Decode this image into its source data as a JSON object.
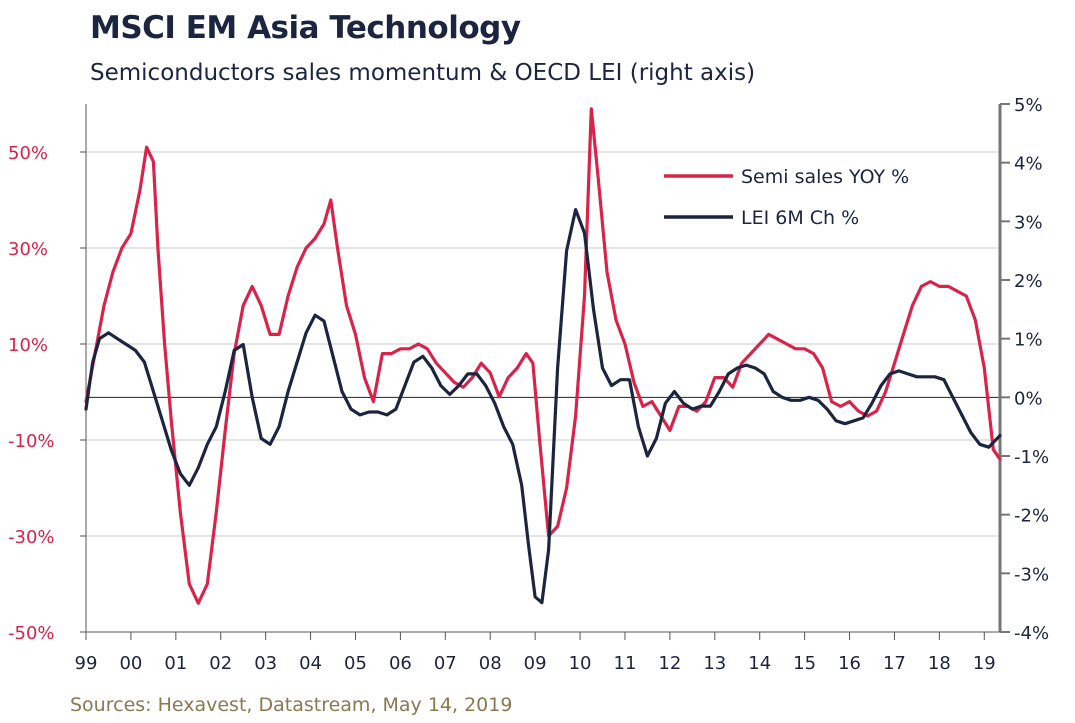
{
  "header": {
    "title": "MSCI EM Asia Technology",
    "subtitle": "Semiconductors sales momentum & OECD LEI (right axis)"
  },
  "footer": {
    "source": "Sources: Hexavest, Datastream, May 14, 2019"
  },
  "colors": {
    "semi": "#d8234a",
    "lei": "#1b2540",
    "grid": "#c8c8c8",
    "axis": "#555555",
    "source": "#8a7850"
  },
  "chart_data": {
    "type": "line",
    "title": "MSCI EM Asia Technology",
    "subtitle": "Semiconductors sales momentum & OECD LEI (right axis)",
    "x_categories": [
      "99",
      "00",
      "01",
      "02",
      "03",
      "04",
      "05",
      "06",
      "07",
      "08",
      "09",
      "10",
      "11",
      "12",
      "13",
      "14",
      "15",
      "16",
      "17",
      "18",
      "19"
    ],
    "xlim": [
      1999,
      2019.35
    ],
    "y_left": {
      "ylim": [
        -50,
        60
      ],
      "ticks": [
        50,
        30,
        10,
        -10,
        -30,
        -50
      ],
      "tick_labels": [
        "50%",
        "30%",
        "10%",
        "-10%",
        "-30%",
        "-50%"
      ]
    },
    "y_right": {
      "ylim": [
        -4,
        5
      ],
      "ticks": [
        5,
        4,
        3,
        2,
        1,
        0,
        -1,
        -2,
        -3,
        -4
      ],
      "tick_labels": [
        "5%",
        "4%",
        "3%",
        "2%",
        "1%",
        "0%",
        "-1%",
        "-2%",
        "-3%",
        "-4%"
      ]
    },
    "grid": true,
    "legend": "top-right",
    "series": [
      {
        "name": "Semi sales YOY %",
        "axis": "left",
        "x": [
          1999.0,
          1999.2,
          1999.4,
          1999.6,
          1999.8,
          2000.0,
          2000.2,
          2000.35,
          2000.5,
          2000.6,
          2000.75,
          2000.9,
          2001.1,
          2001.3,
          2001.5,
          2001.7,
          2001.9,
          2002.1,
          2002.3,
          2002.5,
          2002.7,
          2002.9,
          2003.1,
          2003.3,
          2003.5,
          2003.7,
          2003.9,
          2004.1,
          2004.3,
          2004.45,
          2004.6,
          2004.8,
          2005.0,
          2005.2,
          2005.4,
          2005.6,
          2005.8,
          2006.0,
          2006.2,
          2006.4,
          2006.6,
          2006.8,
          2007.0,
          2007.2,
          2007.4,
          2007.6,
          2007.8,
          2008.0,
          2008.2,
          2008.4,
          2008.6,
          2008.8,
          2008.95,
          2009.1,
          2009.3,
          2009.5,
          2009.7,
          2009.9,
          2010.1,
          2010.25,
          2010.4,
          2010.6,
          2010.8,
          2011.0,
          2011.2,
          2011.4,
          2011.6,
          2011.8,
          2012.0,
          2012.2,
          2012.4,
          2012.6,
          2012.8,
          2013.0,
          2013.2,
          2013.4,
          2013.6,
          2013.8,
          2014.0,
          2014.2,
          2014.4,
          2014.6,
          2014.8,
          2015.0,
          2015.2,
          2015.4,
          2015.6,
          2015.8,
          2016.0,
          2016.2,
          2016.4,
          2016.6,
          2016.8,
          2017.0,
          2017.2,
          2017.4,
          2017.6,
          2017.8,
          2018.0,
          2018.2,
          2018.4,
          2018.6,
          2018.8,
          2019.0,
          2019.2,
          2019.35
        ],
        "values": [
          -2,
          8,
          18,
          25,
          30,
          33,
          42,
          51,
          48,
          30,
          10,
          -6,
          -25,
          -40,
          -44,
          -40,
          -25,
          -8,
          8,
          18,
          22,
          18,
          12,
          12,
          20,
          26,
          30,
          32,
          35,
          40,
          30,
          18,
          12,
          3,
          -2,
          8,
          8,
          9,
          9,
          10,
          9,
          6,
          4,
          2,
          1,
          3,
          6,
          4,
          -1,
          3,
          5,
          8,
          6,
          -10,
          -30,
          -28,
          -20,
          -5,
          20,
          59,
          45,
          25,
          15,
          10,
          2,
          -3,
          -2,
          -5,
          -8,
          -3,
          -3,
          -4,
          -2,
          3,
          3,
          1,
          6,
          8,
          10,
          12,
          11,
          10,
          9,
          9,
          8,
          5,
          -2,
          -3,
          -2,
          -4,
          -5,
          -4,
          0,
          6,
          12,
          18,
          22,
          23,
          22,
          22,
          21,
          20,
          15,
          5,
          -12,
          -14
        ]
      },
      {
        "name": "LEI 6M Ch  %",
        "axis": "right",
        "x": [
          1999.0,
          1999.15,
          1999.3,
          1999.5,
          1999.7,
          1999.9,
          2000.1,
          2000.3,
          2000.5,
          2000.7,
          2000.9,
          2001.1,
          2001.3,
          2001.5,
          2001.7,
          2001.9,
          2002.1,
          2002.3,
          2002.5,
          2002.7,
          2002.9,
          2003.1,
          2003.3,
          2003.5,
          2003.7,
          2003.9,
          2004.1,
          2004.3,
          2004.5,
          2004.7,
          2004.9,
          2005.1,
          2005.3,
          2005.5,
          2005.7,
          2005.9,
          2006.1,
          2006.3,
          2006.5,
          2006.7,
          2006.9,
          2007.1,
          2007.3,
          2007.5,
          2007.7,
          2007.9,
          2008.1,
          2008.3,
          2008.5,
          2008.7,
          2008.85,
          2009.0,
          2009.15,
          2009.3,
          2009.5,
          2009.7,
          2009.9,
          2010.1,
          2010.3,
          2010.5,
          2010.7,
          2010.9,
          2011.1,
          2011.3,
          2011.5,
          2011.7,
          2011.9,
          2012.1,
          2012.3,
          2012.5,
          2012.7,
          2012.9,
          2013.1,
          2013.3,
          2013.5,
          2013.7,
          2013.9,
          2014.1,
          2014.3,
          2014.5,
          2014.7,
          2014.9,
          2015.1,
          2015.3,
          2015.5,
          2015.7,
          2015.9,
          2016.1,
          2016.3,
          2016.5,
          2016.7,
          2016.9,
          2017.1,
          2017.3,
          2017.5,
          2017.7,
          2017.9,
          2018.1,
          2018.3,
          2018.5,
          2018.7,
          2018.9,
          2019.1,
          2019.35
        ],
        "values": [
          -0.2,
          0.6,
          1.0,
          1.1,
          1.0,
          0.9,
          0.8,
          0.6,
          0.1,
          -0.4,
          -0.9,
          -1.3,
          -1.5,
          -1.2,
          -0.8,
          -0.5,
          0.1,
          0.8,
          0.9,
          0.0,
          -0.7,
          -0.8,
          -0.5,
          0.1,
          0.6,
          1.1,
          1.4,
          1.3,
          0.7,
          0.1,
          -0.2,
          -0.3,
          -0.25,
          -0.25,
          -0.3,
          -0.2,
          0.2,
          0.6,
          0.7,
          0.5,
          0.2,
          0.05,
          0.2,
          0.4,
          0.4,
          0.2,
          -0.1,
          -0.5,
          -0.8,
          -1.5,
          -2.5,
          -3.4,
          -3.5,
          -2.6,
          0.5,
          2.5,
          3.2,
          2.8,
          1.5,
          0.5,
          0.2,
          0.3,
          0.3,
          -0.5,
          -1.0,
          -0.7,
          -0.1,
          0.1,
          -0.1,
          -0.2,
          -0.15,
          -0.15,
          0.1,
          0.4,
          0.5,
          0.55,
          0.5,
          0.4,
          0.1,
          0.0,
          -0.05,
          -0.05,
          0.0,
          -0.05,
          -0.2,
          -0.4,
          -0.45,
          -0.4,
          -0.35,
          -0.1,
          0.2,
          0.4,
          0.45,
          0.4,
          0.35,
          0.35,
          0.35,
          0.3,
          0.0,
          -0.3,
          -0.6,
          -0.8,
          -0.85,
          -0.65
        ]
      }
    ]
  }
}
